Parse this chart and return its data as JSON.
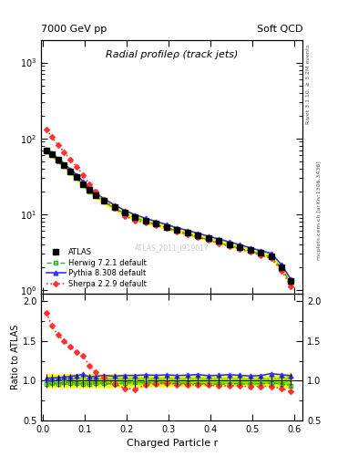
{
  "title": "Radial profileρ (track jets)",
  "top_left_label": "7000 GeV pp",
  "top_right_label": "Soft QCD",
  "right_label_top": "Rivet 3.1.10, ≥ 3.2M events",
  "right_label_mid": "mcplots.cern.ch [arXiv:1306.3436]",
  "watermark": "ATLAS_2011_I919017",
  "xlabel": "Charged Particle r",
  "ylabel_ratio": "Ratio to ATLAS",
  "x_data": [
    0.008,
    0.02,
    0.035,
    0.05,
    0.065,
    0.08,
    0.095,
    0.11,
    0.125,
    0.145,
    0.17,
    0.195,
    0.22,
    0.245,
    0.27,
    0.295,
    0.32,
    0.345,
    0.37,
    0.395,
    0.42,
    0.445,
    0.47,
    0.495,
    0.52,
    0.545,
    0.57,
    0.592
  ],
  "y_atlas": [
    70,
    62,
    52,
    44,
    37,
    31,
    25,
    21,
    18,
    15,
    12.5,
    10.5,
    9.2,
    8.2,
    7.5,
    6.8,
    6.2,
    5.7,
    5.2,
    4.8,
    4.4,
    4.0,
    3.7,
    3.4,
    3.1,
    2.8,
    2.0,
    1.3
  ],
  "y_atlas_err_lo": [
    6,
    5,
    4,
    3.5,
    3,
    2.5,
    2,
    1.7,
    1.4,
    1.2,
    1.0,
    0.8,
    0.7,
    0.6,
    0.5,
    0.5,
    0.4,
    0.4,
    0.35,
    0.3,
    0.3,
    0.25,
    0.25,
    0.2,
    0.2,
    0.18,
    0.15,
    0.12
  ],
  "y_atlas_err_hi": [
    6,
    5,
    4,
    3.5,
    3,
    2.5,
    2,
    1.7,
    1.4,
    1.2,
    1.0,
    0.8,
    0.7,
    0.6,
    0.5,
    0.5,
    0.4,
    0.4,
    0.35,
    0.3,
    0.3,
    0.25,
    0.25,
    0.2,
    0.2,
    0.18,
    0.15,
    0.12
  ],
  "y_herwig": [
    67,
    60,
    50,
    43,
    36,
    30,
    24,
    20,
    17.5,
    14.5,
    12,
    10.2,
    9.0,
    8.0,
    7.3,
    6.6,
    6.0,
    5.5,
    5.0,
    4.6,
    4.2,
    3.85,
    3.55,
    3.25,
    2.98,
    2.72,
    1.92,
    1.22
  ],
  "y_pythia": [
    72,
    64,
    54,
    46,
    39,
    33,
    27,
    22,
    19,
    16,
    13.2,
    11.2,
    9.8,
    8.8,
    8.0,
    7.3,
    6.6,
    6.1,
    5.6,
    5.1,
    4.7,
    4.3,
    3.95,
    3.6,
    3.3,
    3.05,
    2.15,
    1.38
  ],
  "y_sherpa": [
    130,
    105,
    82,
    66,
    53,
    42,
    33,
    25,
    20,
    15.5,
    12.0,
    9.5,
    8.2,
    7.8,
    7.2,
    6.6,
    5.9,
    5.4,
    4.95,
    4.55,
    4.1,
    3.75,
    3.45,
    3.15,
    2.88,
    2.6,
    1.8,
    1.12
  ],
  "color_atlas": "#000000",
  "color_herwig": "#33aa33",
  "color_pythia": "#3333ff",
  "color_sherpa": "#ff3333",
  "band_yellow": "#ffff00",
  "band_green": "#99dd00",
  "ylim_main": [
    0.9,
    2000
  ],
  "ylim_ratio": [
    0.5,
    2.1
  ],
  "xlim": [
    -0.005,
    0.62
  ]
}
